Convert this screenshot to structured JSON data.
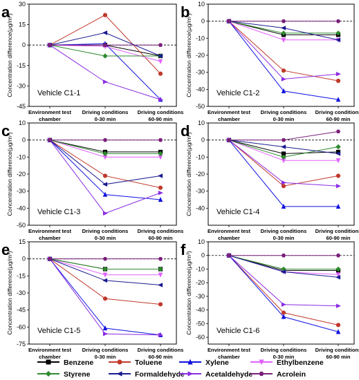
{
  "figure": {
    "ylabel_main": "Concentration difference",
    "ylabel_unit": "(μg/m³)",
    "xtick_labels": [
      [
        "Environment test",
        "chamber"
      ],
      [
        "Driving conditions",
        "0-30 min"
      ],
      [
        "Driving conditions",
        "60-90 min"
      ]
    ]
  },
  "series_styles": [
    {
      "name": "Benzene",
      "color": "#000000",
      "marker": "square"
    },
    {
      "name": "Toluene",
      "color": "#c0392b",
      "marker": "circle"
    },
    {
      "name": "Xylene",
      "color": "#1010e0",
      "marker": "triangle-up"
    },
    {
      "name": "Ethylbenzene",
      "color": "#e060ff",
      "marker": "triangle-down"
    },
    {
      "name": "Styrene",
      "color": "#2e8b2e",
      "marker": "diamond"
    },
    {
      "name": "Formaldehyde",
      "color": "#1a1a90",
      "marker": "triangle-left"
    },
    {
      "name": "Acetaldehyde",
      "color": "#8a2be2",
      "marker": "triangle-right"
    },
    {
      "name": "Acrolein",
      "color": "#7a1f7a",
      "marker": "hexagon"
    }
  ],
  "chart_data": [
    {
      "type": "line",
      "panel": "a",
      "label": "Vehicle C1-1",
      "categories": [
        "Environment test chamber",
        "Driving conditions 0-30 min",
        "Driving conditions 60-90 min"
      ],
      "ylim": [
        -45,
        30
      ],
      "yticks": [
        -45,
        -30,
        -15,
        0,
        15,
        30
      ],
      "series": [
        {
          "name": "Benzene",
          "values": [
            0,
            0,
            -8
          ]
        },
        {
          "name": "Toluene",
          "values": [
            0,
            22,
            -21
          ]
        },
        {
          "name": "Xylene",
          "values": [
            0,
            1,
            -40
          ]
        },
        {
          "name": "Ethylbenzene",
          "values": [
            0,
            -1,
            -12
          ]
        },
        {
          "name": "Styrene",
          "values": [
            0,
            -8,
            -8
          ]
        },
        {
          "name": "Formaldehyde",
          "values": [
            0,
            9,
            -8
          ]
        },
        {
          "name": "Acetaldehyde",
          "values": [
            0,
            -27,
            -40
          ]
        },
        {
          "name": "Acrolein",
          "values": [
            0,
            0,
            0
          ]
        }
      ]
    },
    {
      "type": "line",
      "panel": "b",
      "label": "Vehicle C1-2",
      "categories": [
        "Environment test chamber",
        "Driving conditions 0-30 min",
        "Driving conditions 60-90 min"
      ],
      "ylim": [
        -50,
        10
      ],
      "yticks": [
        -50,
        -40,
        -30,
        -20,
        -10,
        0,
        10
      ],
      "series": [
        {
          "name": "Benzene",
          "values": [
            0,
            -8,
            -8
          ]
        },
        {
          "name": "Toluene",
          "values": [
            0,
            -29,
            -35
          ]
        },
        {
          "name": "Xylene",
          "values": [
            0,
            -41,
            -46
          ]
        },
        {
          "name": "Ethylbenzene",
          "values": [
            0,
            -11,
            -11
          ]
        },
        {
          "name": "Styrene",
          "values": [
            0,
            -7,
            -7
          ]
        },
        {
          "name": "Formaldehyde",
          "values": [
            0,
            -4,
            -11
          ]
        },
        {
          "name": "Acetaldehyde",
          "values": [
            0,
            -34,
            -31
          ]
        },
        {
          "name": "Acrolein",
          "values": [
            0,
            0,
            0
          ]
        }
      ]
    },
    {
      "type": "line",
      "panel": "c",
      "label": "Vehicle C1-3",
      "categories": [
        "Environment test chamber",
        "Driving conditions 0-30 min",
        "Driving conditions 60-90 min"
      ],
      "ylim": [
        -50,
        10
      ],
      "yticks": [
        -50,
        -40,
        -30,
        -20,
        -10,
        0,
        10
      ],
      "series": [
        {
          "name": "Benzene",
          "values": [
            0,
            -7,
            -7
          ]
        },
        {
          "name": "Toluene",
          "values": [
            0,
            -21,
            -28
          ]
        },
        {
          "name": "Xylene",
          "values": [
            0,
            -32,
            -35
          ]
        },
        {
          "name": "Ethylbenzene",
          "values": [
            0,
            -10,
            -10
          ]
        },
        {
          "name": "Styrene",
          "values": [
            0,
            -8,
            -8
          ]
        },
        {
          "name": "Formaldehyde",
          "values": [
            0,
            -26,
            -21
          ]
        },
        {
          "name": "Acetaldehyde",
          "values": [
            0,
            -43,
            -31
          ]
        },
        {
          "name": "Acrolein",
          "values": [
            0,
            0,
            0
          ]
        }
      ]
    },
    {
      "type": "line",
      "panel": "d",
      "label": "Vehicle C1-4",
      "categories": [
        "Environment test chamber",
        "Driving conditions 0-30 min",
        "Driving conditions 60-90 min"
      ],
      "ylim": [
        -50,
        10
      ],
      "yticks": [
        -40,
        -30,
        -20,
        -10,
        0,
        10
      ],
      "series": [
        {
          "name": "Benzene",
          "values": [
            0,
            -8,
            -7
          ]
        },
        {
          "name": "Toluene",
          "values": [
            0,
            -27,
            -21
          ]
        },
        {
          "name": "Xylene",
          "values": [
            0,
            -39,
            -39
          ]
        },
        {
          "name": "Ethylbenzene",
          "values": [
            0,
            -12,
            -12
          ]
        },
        {
          "name": "Styrene",
          "values": [
            0,
            -10,
            -4
          ]
        },
        {
          "name": "Formaldehyde",
          "values": [
            0,
            -4,
            -8
          ]
        },
        {
          "name": "Acetaldehyde",
          "values": [
            0,
            -25,
            -27
          ]
        },
        {
          "name": "Acrolein",
          "values": [
            0,
            0,
            5
          ]
        }
      ]
    },
    {
      "type": "line",
      "panel": "e",
      "label": "Vehicle C1-5",
      "categories": [
        "Environment test chamber",
        "Driving conditions 0-30 min",
        "Driving conditions 60-90 min"
      ],
      "ylim": [
        -75,
        15
      ],
      "yticks": [
        -75,
        -60,
        -45,
        -30,
        -15,
        0,
        15
      ],
      "series": [
        {
          "name": "Benzene",
          "values": [
            0,
            -9,
            -9
          ]
        },
        {
          "name": "Toluene",
          "values": [
            0,
            -35,
            -40
          ]
        },
        {
          "name": "Xylene",
          "values": [
            0,
            -61,
            -67
          ]
        },
        {
          "name": "Ethylbenzene",
          "values": [
            0,
            -14,
            -14
          ]
        },
        {
          "name": "Styrene",
          "values": [
            0,
            -9,
            -9
          ]
        },
        {
          "name": "Formaldehyde",
          "values": [
            0,
            -19,
            -23
          ]
        },
        {
          "name": "Acetaldehyde",
          "values": [
            0,
            -66,
            -67
          ]
        },
        {
          "name": "Acrolein",
          "values": [
            0,
            0,
            0
          ]
        }
      ]
    },
    {
      "type": "line",
      "panel": "f",
      "label": "Vehicle C1-6",
      "categories": [
        "Environment test chamber",
        "Driving conditions 0-30 min",
        "Driving conditions 60-90 min"
      ],
      "ylim": [
        -65,
        10
      ],
      "yticks": [
        -60,
        -50,
        -40,
        -30,
        -20,
        -10,
        0,
        10
      ],
      "series": [
        {
          "name": "Benzene",
          "values": [
            0,
            -11,
            -11
          ]
        },
        {
          "name": "Toluene",
          "values": [
            0,
            -42,
            -51
          ]
        },
        {
          "name": "Xylene",
          "values": [
            0,
            -45,
            -56
          ]
        },
        {
          "name": "Ethylbenzene",
          "values": [
            0,
            -12,
            -14
          ]
        },
        {
          "name": "Styrene",
          "values": [
            0,
            -10,
            -10
          ]
        },
        {
          "name": "Formaldehyde",
          "values": [
            0,
            -12,
            -16
          ]
        },
        {
          "name": "Acetaldehyde",
          "values": [
            0,
            -36,
            -37
          ]
        },
        {
          "name": "Acrolein",
          "values": [
            0,
            0,
            0
          ]
        }
      ]
    }
  ]
}
